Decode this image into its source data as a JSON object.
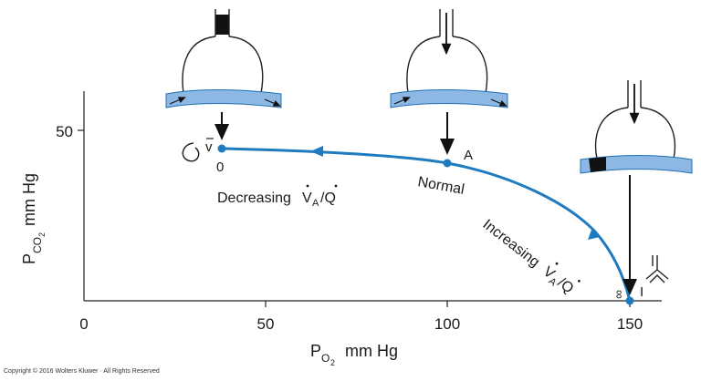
{
  "diagram": {
    "axes": {
      "x_label_main": "P",
      "x_label_sub": "O",
      "x_label_subsub": "2",
      "x_label_unit": "mm Hg",
      "y_label_main": "P",
      "y_label_sub": "CO",
      "y_label_subsub": "2",
      "y_label_unit": "mm Hg",
      "x_ticks": [
        "0",
        "50",
        "100",
        "150"
      ],
      "y_ticks": [
        "50"
      ]
    },
    "points": {
      "venous_symbol": "v",
      "venous_zero": "0",
      "normal_letter": "A",
      "inspired_letter": "I",
      "infinity_symbol": "∞"
    },
    "labels": {
      "normal": "Normal",
      "decreasing": "Decreasing",
      "increasing": "Increasing",
      "va": "V",
      "a_sub": "A",
      "slash_q": "/Q"
    },
    "colors": {
      "curve": "#1f7bc0",
      "vessel": "#8db8e3",
      "vessel_stroke": "#1f6fb5",
      "block": "#111111"
    }
  },
  "footer": {
    "copyright": "Copyright © 2016 Wolters Kluwer · All Rights Reserved"
  }
}
